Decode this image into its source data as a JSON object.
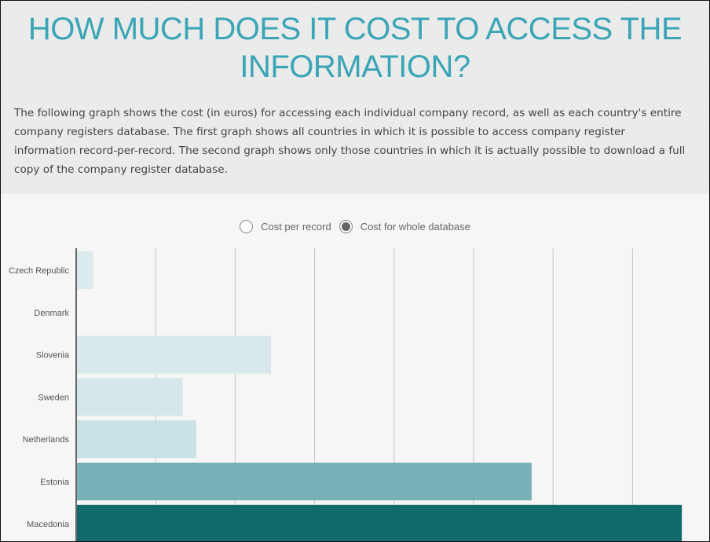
{
  "header": {
    "title": "HOW MUCH DOES IT COST TO ACCESS THE INFORMATION?",
    "intro": "The following graph shows the cost (in euros) for accessing each individual company record, as well as each country's entire company registers database. The first graph shows all countries in which it is possible to access company register information record-per-record. The second graph shows only those countries in which it is actually possible to download a full copy of the company register database."
  },
  "legend": {
    "options": [
      {
        "label": "Cost per record",
        "selected": false
      },
      {
        "label": "Cost for whole database",
        "selected": true
      }
    ]
  },
  "chart_data": {
    "type": "bar",
    "orientation": "horizontal",
    "categories": [
      "Czech Republic",
      "Denmark",
      "Slovenia",
      "Sweden",
      "Netherlands",
      "Estonia",
      "Macedonia"
    ],
    "values": [
      0.21,
      0,
      2.45,
      1.34,
      1.51,
      5.73,
      7.62
    ],
    "value_note_units": "relative (gridline intervals; no tick labels shown)",
    "xlim": [
      0,
      7.9
    ],
    "grid": true,
    "colors": [
      "#dbeaed",
      "#dbeaed",
      "#d9e8eb",
      "#d5e7ea",
      "#c9e2e5",
      "#77b1b7",
      "#136a6c"
    ]
  }
}
